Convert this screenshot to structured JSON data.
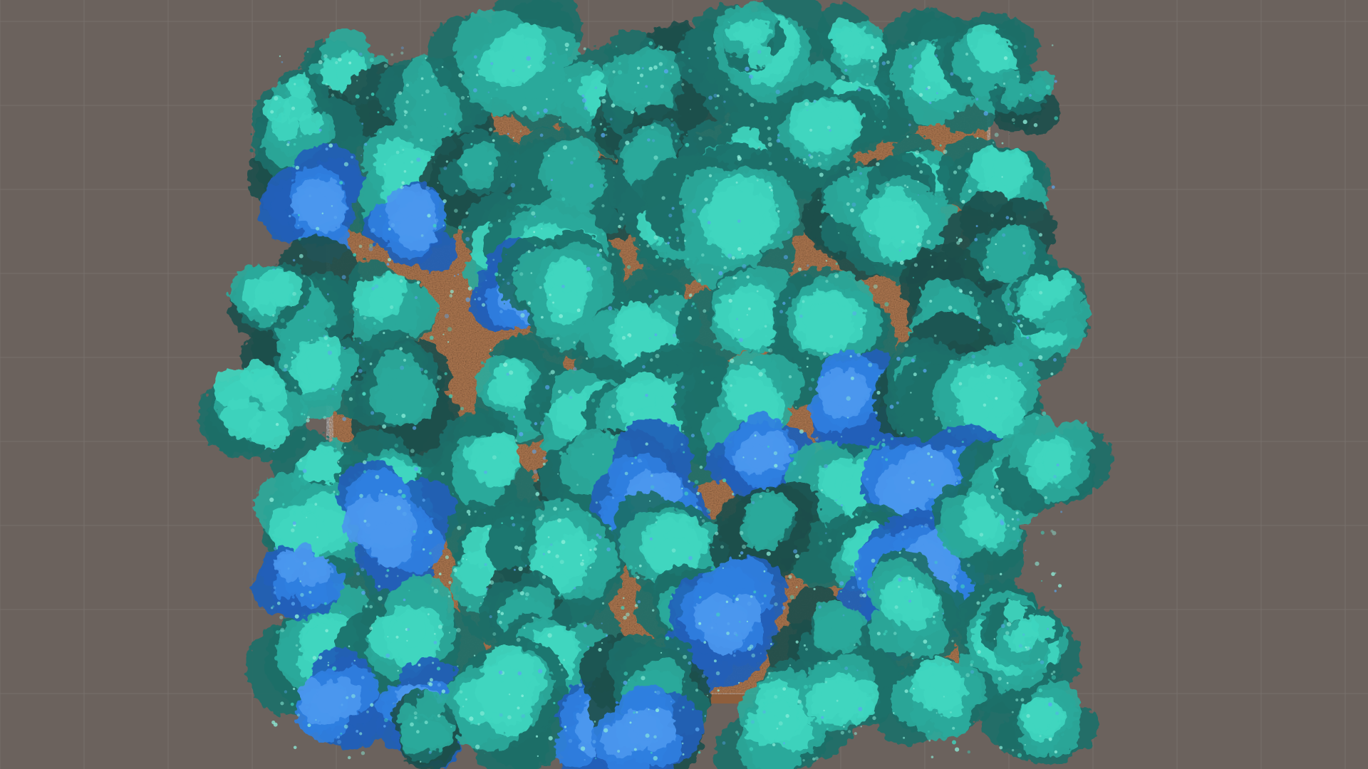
{
  "scene": {
    "background_color": "#6b625d",
    "grid_line_color": "#77706b",
    "ground_color": "#b17a52",
    "ground_shadow_color": "#8e5e3c",
    "foliage_palette": {
      "teal_light": "#3fd6bf",
      "teal_mid": "#2aa99b",
      "teal_dark": "#1c6f69",
      "blue_bright": "#2f7fe0",
      "blue_mid": "#215fb8",
      "conifer_dark": "#1e4f4c",
      "highlight": "#8ff0dc"
    },
    "icons": [
      "grid-floor-icon",
      "terrain-plane-icon",
      "tree-canopy-icon"
    ]
  }
}
